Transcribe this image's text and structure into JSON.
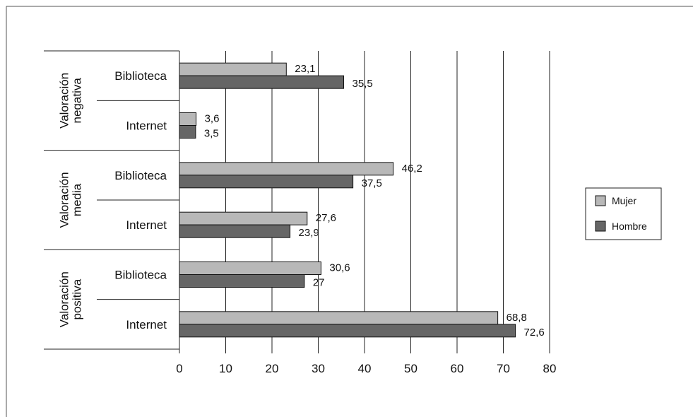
{
  "chart_data": {
    "type": "bar",
    "orientation": "horizontal",
    "groups": [
      {
        "label_lines": [
          "Valoración",
          "negativa"
        ],
        "categories": [
          "Biblioteca",
          "Internet"
        ]
      },
      {
        "label_lines": [
          "Valoración",
          "media"
        ],
        "categories": [
          "Biblioteca",
          "Internet"
        ]
      },
      {
        "label_lines": [
          "Valoración",
          "positiva"
        ],
        "categories": [
          "Biblioteca",
          "Internet"
        ]
      }
    ],
    "series": [
      {
        "name": "Mujer",
        "color": "#b8b8b8",
        "values": [
          23.1,
          3.6,
          46.2,
          27.6,
          30.6,
          68.8
        ],
        "labels": [
          "23,1",
          "3,6",
          "46,2",
          "27,6",
          "30,6",
          "68,8"
        ]
      },
      {
        "name": "Hombre",
        "color": "#666666",
        "values": [
          35.5,
          3.5,
          37.5,
          23.9,
          27,
          72.6
        ],
        "labels": [
          "35,5",
          "3,5",
          "37,5",
          "23,9",
          "27",
          "72,6"
        ]
      }
    ],
    "xlim": [
      0,
      80
    ],
    "xticks": [
      "0",
      "10",
      "20",
      "30",
      "40",
      "50",
      "60",
      "70",
      "80"
    ],
    "grid": "vertical",
    "legend_position": "right"
  }
}
